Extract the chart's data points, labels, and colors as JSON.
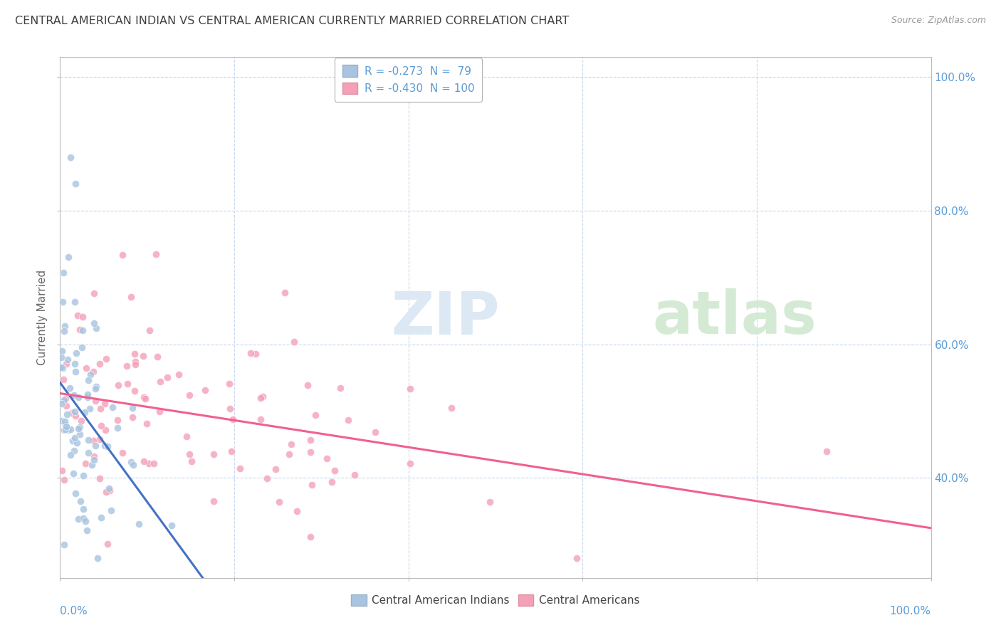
{
  "title": "CENTRAL AMERICAN INDIAN VS CENTRAL AMERICAN CURRENTLY MARRIED CORRELATION CHART",
  "source": "Source: ZipAtlas.com",
  "ylabel": "Currently Married",
  "legend_blue_label": "R = -0.273  N =  79",
  "legend_pink_label": "R = -0.430  N = 100",
  "legend_blue_category": "Central American Indians",
  "legend_pink_category": "Central Americans",
  "blue_color": "#a8c4e0",
  "pink_color": "#f4a0b8",
  "blue_line_color": "#4472c4",
  "pink_line_color": "#f06090",
  "dashed_line_color": "#8ab0d0",
  "background_color": "#ffffff",
  "grid_color": "#c8d8ec",
  "axis_label_color": "#5b9bd5",
  "title_color": "#404040",
  "source_color": "#999999",
  "ylabel_color": "#666666",
  "watermark_zip_color": "#dce8f4",
  "watermark_atlas_color": "#d0e8d0",
  "xlim": [
    0,
    100
  ],
  "ylim": [
    25,
    103
  ],
  "yticks": [
    40,
    60,
    80,
    100
  ],
  "ytick_labels": [
    "40.0%",
    "60.0%",
    "80.0%",
    "100.0%"
  ],
  "title_fontsize": 11.5,
  "source_fontsize": 9,
  "tick_label_fontsize": 11,
  "ylabel_fontsize": 11,
  "legend_fontsize": 11,
  "watermark_fontsize": 60
}
